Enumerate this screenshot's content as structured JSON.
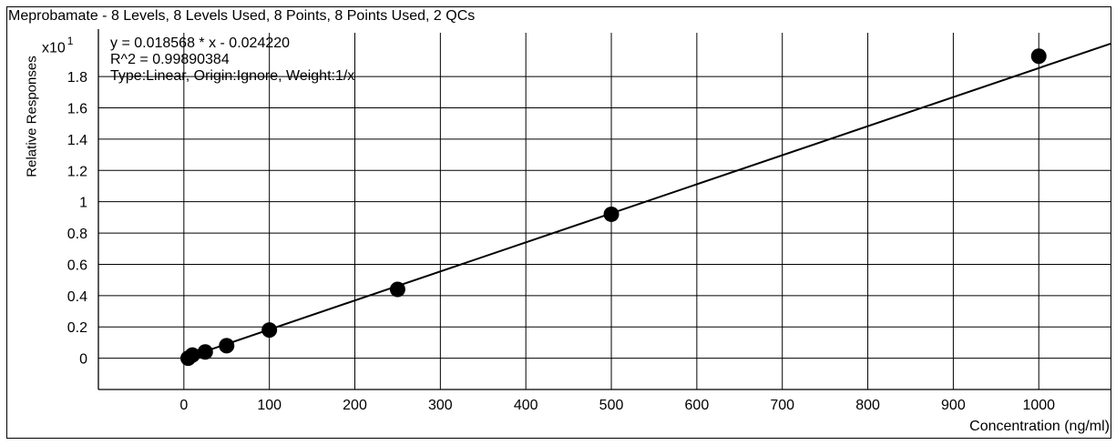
{
  "chart_data": {
    "type": "scatter",
    "title": "Meprobamate - 8 Levels, 8 Levels Used, 8 Points, 8 Points Used, 2 QCs",
    "xlabel": "Concentration (ng/ml)",
    "ylabel": "Relative Responses",
    "y_multiplier": "x10",
    "y_multiplier_exponent": "1",
    "xlim": [
      -100,
      1085
    ],
    "ylim": [
      -0.2,
      2.08
    ],
    "x_ticks": [
      0,
      100,
      200,
      300,
      400,
      500,
      600,
      700,
      800,
      900,
      1000
    ],
    "y_ticks": [
      0,
      0.2,
      0.4,
      0.6,
      0.8,
      1,
      1.2,
      1.4,
      1.6,
      1.8
    ],
    "x_tick_labels": [
      "0",
      "100",
      "200",
      "300",
      "400",
      "500",
      "600",
      "700",
      "800",
      "900",
      "1000"
    ],
    "y_tick_labels": [
      "0",
      "0.2",
      "0.4",
      "0.6",
      "0.8",
      "1",
      "1.2",
      "1.4",
      "1.6",
      "1.8"
    ],
    "grid": true,
    "annotations": [
      "y = 0.018568 * x  - 0.024220",
      "R^2 = 0.99890384",
      "Type:Linear, Origin:Ignore, Weight:1/x"
    ],
    "points": {
      "x": [
        5,
        10,
        25,
        50,
        100,
        250,
        500,
        1000
      ],
      "y": [
        0.0,
        0.02,
        0.04,
        0.08,
        0.18,
        0.44,
        0.92,
        1.93
      ]
    },
    "fit_line": {
      "slope": 0.0018568,
      "intercept": -0.002422,
      "x_range": [
        0,
        1085
      ]
    },
    "colors": {
      "points": "#000000",
      "line": "#000000",
      "grid": "#000000"
    }
  }
}
